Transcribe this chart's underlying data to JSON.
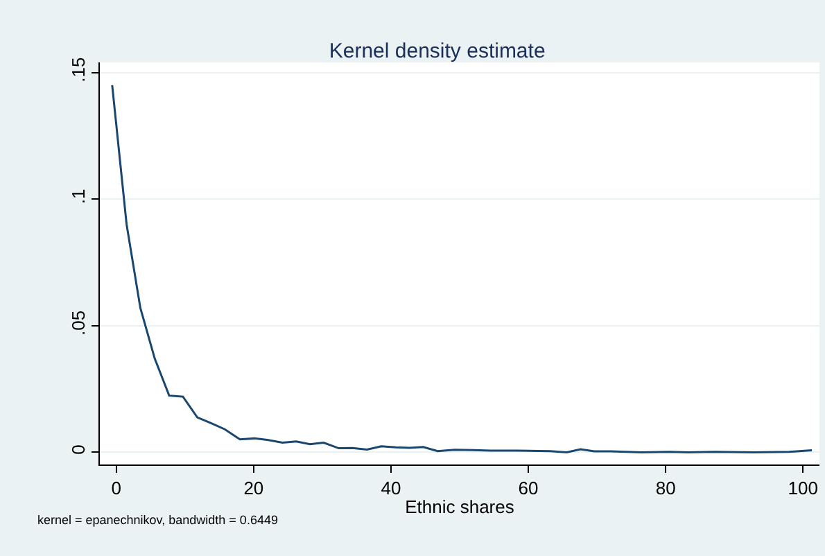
{
  "chart_data": {
    "type": "line",
    "title": "Kernel density estimate",
    "xlabel": "Ethnic shares",
    "annotations": [
      "kernel = epanechnikov, bandwidth = 0.6449"
    ],
    "x": [
      -0.6,
      1.5,
      3.5,
      5.6,
      7.7,
      9.7,
      11.8,
      13.8,
      15.8,
      18.0,
      20.1,
      22.0,
      24.2,
      26.2,
      28.2,
      30.2,
      32.4,
      34.4,
      36.5,
      38.6,
      40.7,
      42.7,
      44.7,
      46.8,
      49.3,
      52.0,
      54.5,
      58.5,
      63.2,
      65.6,
      67.6,
      69.6,
      72.0,
      76.5,
      80.6,
      83.3,
      87.3,
      92.7,
      98.0,
      101.3
    ],
    "series": [
      {
        "color": "#1a476f",
        "values": [
          0.145,
          0.09,
          0.057,
          0.037,
          0.0224,
          0.022,
          0.0138,
          0.0115,
          0.0091,
          0.0051,
          0.0055,
          0.0049,
          0.0038,
          0.0043,
          0.0032,
          0.0038,
          0.0016,
          0.0017,
          0.0011,
          0.0024,
          0.002,
          0.0018,
          0.0021,
          0.0005,
          0.001,
          0.0009,
          0.0007,
          0.0007,
          0.0005,
          0.0,
          0.0012,
          0.0004,
          0.0004,
          0.0,
          0.0002,
          0.0,
          0.0002,
          0.0,
          0.0002,
          0.0008
        ]
      }
    ],
    "xlim": [
      -2.4,
      102.4
    ],
    "xticks": [
      0,
      20,
      40,
      60,
      80,
      100
    ],
    "ylim": [
      -0.0048,
      0.154
    ],
    "yticks": [
      {
        "value": 0,
        "label": "0"
      },
      {
        "value": 0.05,
        "label": ".05"
      },
      {
        "value": 0.1,
        "label": ".1"
      },
      {
        "value": 0.15,
        "label": ".15"
      }
    ],
    "grid": "y",
    "marker": "none",
    "line_style": "solid"
  }
}
